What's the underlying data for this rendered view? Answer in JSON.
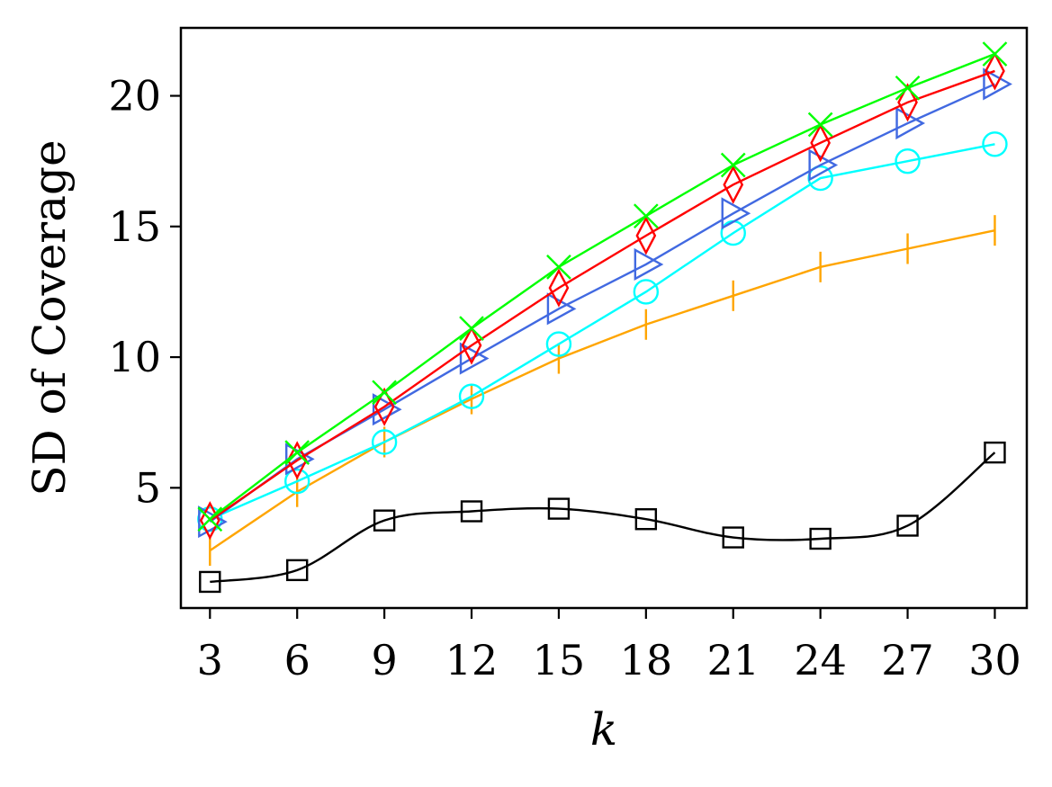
{
  "chart_data": {
    "type": "line",
    "title": "",
    "xlabel": "k",
    "ylabel": "SD of Coverage",
    "x": [
      3,
      6,
      9,
      12,
      15,
      18,
      21,
      24,
      27,
      30
    ],
    "xlim": [
      2,
      31.1
    ],
    "ylim": [
      0.4,
      22.6
    ],
    "xticks": [
      3,
      6,
      9,
      12,
      15,
      18,
      21,
      24,
      27,
      30
    ],
    "yticks": [
      5,
      10,
      15,
      20
    ],
    "grid": false,
    "legend": "none",
    "series": [
      {
        "marker": "square",
        "color": "#000000",
        "values": [
          1.4,
          1.85,
          3.75,
          4.1,
          4.2,
          3.8,
          3.1,
          3.05,
          3.55,
          6.35
        ]
      },
      {
        "marker": "vline",
        "color": "#FFA500",
        "values": [
          2.6,
          4.85,
          6.75,
          8.4,
          9.95,
          11.25,
          12.35,
          13.45,
          14.15,
          14.85
        ]
      },
      {
        "marker": "circle",
        "color": "#00FFFF",
        "values": [
          3.8,
          5.25,
          6.75,
          8.5,
          10.5,
          12.5,
          14.75,
          16.85,
          17.5,
          18.15
        ]
      },
      {
        "marker": "triangle-right",
        "color": "#4169E1",
        "values": [
          3.7,
          6.1,
          8.0,
          9.95,
          11.85,
          13.55,
          15.5,
          17.35,
          18.95,
          20.45
        ]
      },
      {
        "marker": "diamond",
        "color": "#FF0000",
        "values": [
          3.75,
          6.05,
          8.1,
          10.45,
          12.65,
          14.65,
          16.6,
          18.2,
          19.75,
          20.95
        ]
      },
      {
        "marker": "x",
        "color": "#00FF00",
        "values": [
          3.8,
          6.35,
          8.65,
          11.1,
          13.45,
          15.4,
          17.35,
          18.9,
          20.3,
          21.6
        ]
      }
    ]
  }
}
